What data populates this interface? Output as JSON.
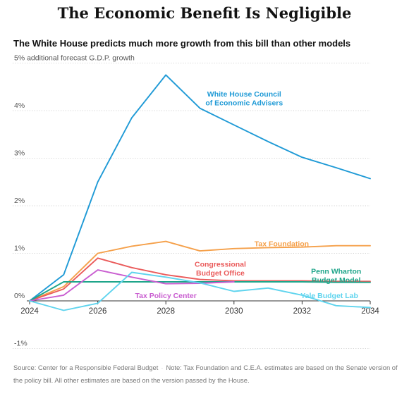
{
  "headline": "The Economic Benefit Is Negligible",
  "subtitle": "The White House predicts much more growth from this bill than other models",
  "footnote": {
    "source": "Source: Center for a Responsible Federal Budget",
    "note": "Note: Tax Foundation and C.E.A. estimates are based on the Senate version of the policy bill. All other estimates are based on the version passed by the House."
  },
  "chart_data": {
    "type": "line",
    "title": "The Economic Benefit Is Negligible",
    "subtitle": "The White House predicts much more growth from this bill than other models",
    "ylabel": "additional forecast G.D.P. growth",
    "xlim": [
      2024,
      2034
    ],
    "ylim": [
      -1,
      5
    ],
    "x_ticks": [
      2024,
      2026,
      2028,
      2030,
      2032,
      2034
    ],
    "x_tick_labels": [
      "2024",
      "2026",
      "2028",
      "2030",
      "2032",
      "2034"
    ],
    "y_ticks": [
      -1,
      0,
      1,
      2,
      3,
      4,
      5
    ],
    "y_tick_labels": [
      "-1%",
      "0%",
      "1%",
      "2%",
      "3%",
      "4%",
      "5% additional forecast G.D.P. growth"
    ],
    "grid": "horizontal dotted",
    "legend": "direct labels",
    "x": [
      2024,
      2025,
      2026,
      2027,
      2028,
      2029,
      2030,
      2031,
      2032,
      2033,
      2034
    ],
    "series": [
      {
        "name": "White House Council of Economic Advisers",
        "color": "#1f9ad6",
        "values": [
          0,
          0.55,
          2.5,
          3.85,
          4.75,
          4.05,
          3.7,
          3.35,
          3.02,
          2.8,
          2.57
        ]
      },
      {
        "name": "Tax Foundation",
        "color": "#f5a04a",
        "values": [
          0,
          0.3,
          1.0,
          1.15,
          1.25,
          1.05,
          1.1,
          1.12,
          1.13,
          1.16,
          1.16
        ]
      },
      {
        "name": "Congressional Budget Office",
        "color": "#ea5b5b",
        "values": [
          0,
          0.25,
          0.9,
          0.7,
          0.55,
          0.45,
          0.42,
          0.42,
          0.42,
          0.41,
          0.41
        ]
      },
      {
        "name": "Penn Wharton Budget Model",
        "color": "#1fa58a",
        "values": [
          0,
          0.4,
          0.4,
          0.4,
          0.4,
          0.4,
          0.4,
          0.4,
          0.4,
          0.39,
          0.39
        ]
      },
      {
        "name": "Tax Policy Center",
        "color": "#c95dd0",
        "values": [
          0,
          0.12,
          0.65,
          0.5,
          0.36,
          0.37,
          0.4,
          null,
          null,
          null,
          null
        ]
      },
      {
        "name": "Yale Budget Lab",
        "color": "#5fd4ee",
        "values": [
          0,
          -0.2,
          -0.05,
          0.6,
          0.5,
          0.38,
          0.2,
          0.27,
          0.12,
          -0.1,
          -0.14
        ]
      }
    ],
    "series_labels": [
      {
        "lines": [
          "White House Council",
          "of Economic Advisers"
        ],
        "anchor": "middle",
        "at": [
          2030.3,
          4.3
        ]
      },
      {
        "lines": [
          "Tax Foundation"
        ],
        "anchor": "middle",
        "at": [
          2031.4,
          1.15
        ]
      },
      {
        "lines": [
          "Congressional",
          "Budget Office"
        ],
        "anchor": "middle",
        "at": [
          2029.6,
          0.72
        ]
      },
      {
        "lines": [
          "Penn Wharton",
          "Budget Model"
        ],
        "anchor": "middle",
        "at": [
          2033.0,
          0.57
        ]
      },
      {
        "lines": [
          "Tax Policy Center"
        ],
        "anchor": "middle",
        "at": [
          2028.0,
          0.06
        ]
      },
      {
        "lines": [
          "Yale Budget Lab"
        ],
        "anchor": "middle",
        "at": [
          2032.8,
          0.06
        ]
      }
    ]
  }
}
